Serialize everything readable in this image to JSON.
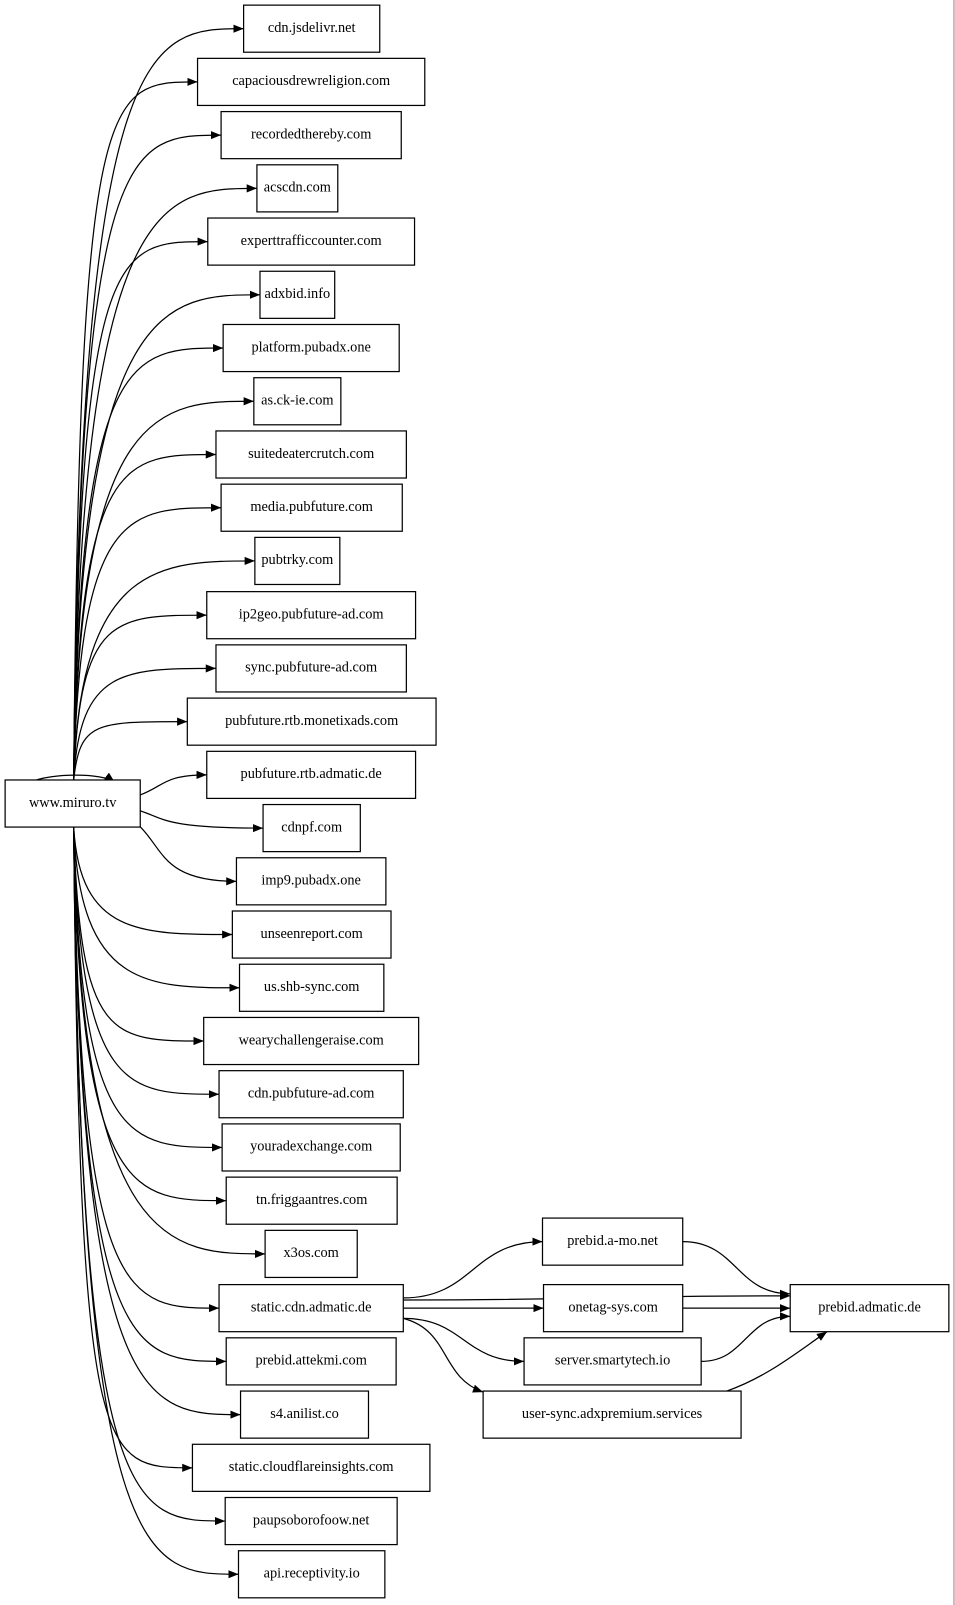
{
  "nodes": [
    {
      "label": "www.miruro.tv"
    },
    {
      "label": "cdn.jsdelivr.net"
    },
    {
      "label": "capaciousdrewreligion.com"
    },
    {
      "label": "recordedthereby.com"
    },
    {
      "label": "acscdn.com"
    },
    {
      "label": "experttrafficcounter.com"
    },
    {
      "label": "adxbid.info"
    },
    {
      "label": "platform.pubadx.one"
    },
    {
      "label": "as.ck-ie.com"
    },
    {
      "label": "suitedeatercrutch.com"
    },
    {
      "label": "media.pubfuture.com"
    },
    {
      "label": "pubtrky.com"
    },
    {
      "label": "ip2geo.pubfuture-ad.com"
    },
    {
      "label": "sync.pubfuture-ad.com"
    },
    {
      "label": "pubfuture.rtb.monetixads.com"
    },
    {
      "label": "pubfuture.rtb.admatic.de"
    },
    {
      "label": "cdnpf.com"
    },
    {
      "label": "imp9.pubadx.one"
    },
    {
      "label": "unseenreport.com"
    },
    {
      "label": "us.shb-sync.com"
    },
    {
      "label": "wearychallengeraise.com"
    },
    {
      "label": "cdn.pubfuture-ad.com"
    },
    {
      "label": "youradexchange.com"
    },
    {
      "label": "tn.friggaantres.com"
    },
    {
      "label": "x3os.com"
    },
    {
      "label": "static.cdn.admatic.de"
    },
    {
      "label": "prebid.attekmi.com"
    },
    {
      "label": "s4.anilist.co"
    },
    {
      "label": "static.cloudflareinsights.com"
    },
    {
      "label": "paupsoborofoow.net"
    },
    {
      "label": "api.receptivity.io"
    },
    {
      "label": "prebid.a-mo.net"
    },
    {
      "label": "onetag-sys.com"
    },
    {
      "label": "server.smartytech.io"
    },
    {
      "label": "user-sync.adxpremium.services"
    },
    {
      "label": "prebid.admatic.de"
    }
  ]
}
